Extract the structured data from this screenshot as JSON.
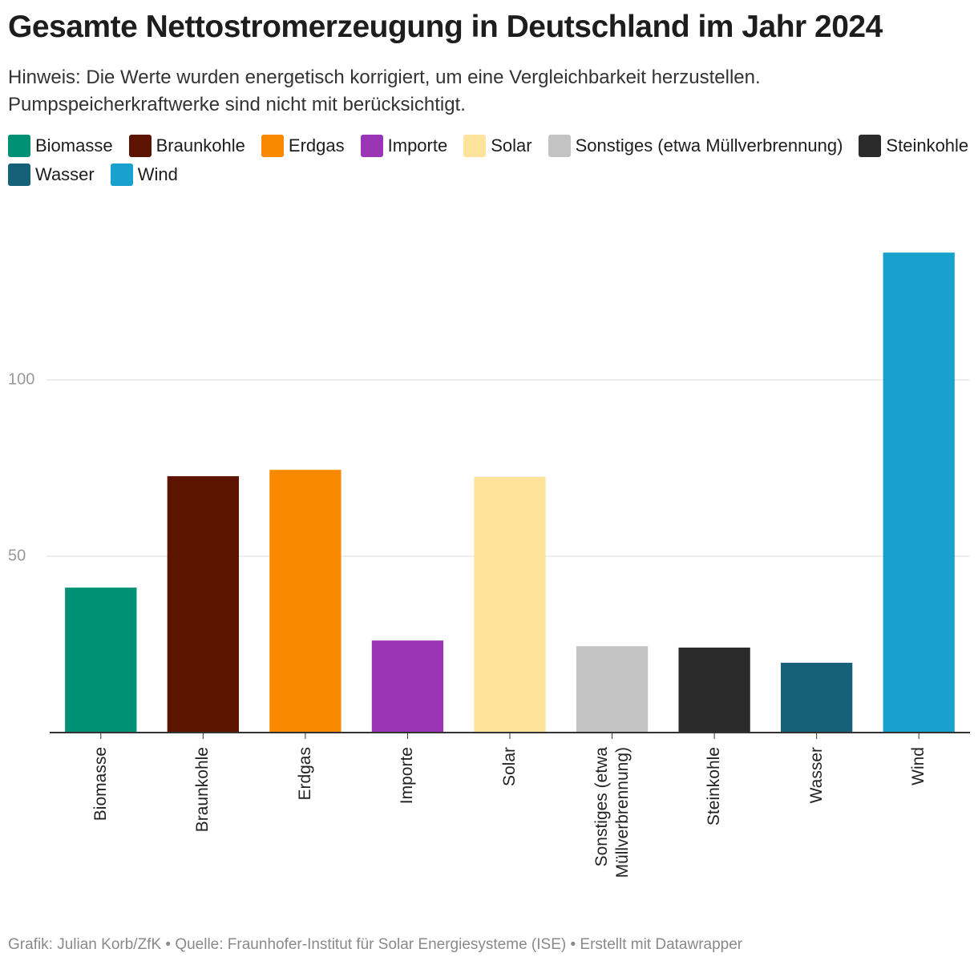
{
  "chart_data": {
    "type": "bar",
    "title": "Gesamte Nettostromerzeugung in Deutschland im Jahr 2024",
    "subtitle": "Hinweis: Die Werte wurden energetisch korrigiert, um eine Vergleichbarkeit herzustellen. Pumpspeicherkraftwerke sind nicht mit berücksichtigt.",
    "categories": [
      "Biomasse",
      "Braunkohle",
      "Erdgas",
      "Importe",
      "Solar",
      "Sonstiges (etwa Müllverbrennung)",
      "Steinkohle",
      "Wasser",
      "Wind"
    ],
    "values": [
      41.1,
      72.7,
      74.5,
      26.1,
      72.5,
      24.5,
      24.1,
      19.8,
      136.1
    ],
    "colors": [
      "#009175",
      "#5c1300",
      "#f98a00",
      "#9b35b6",
      "#fee39c",
      "#c3c3c3",
      "#2b2b2b",
      "#17607a",
      "#18a1cd"
    ],
    "ylim": [
      0,
      140
    ],
    "yticks": [
      50,
      100
    ],
    "grid": true,
    "source": "Grafik: Julian Korb/ZfK • Quelle: Fraunhofer-Institut für Solar Energiesysteme (ISE) • Erstellt mit Datawrapper"
  }
}
